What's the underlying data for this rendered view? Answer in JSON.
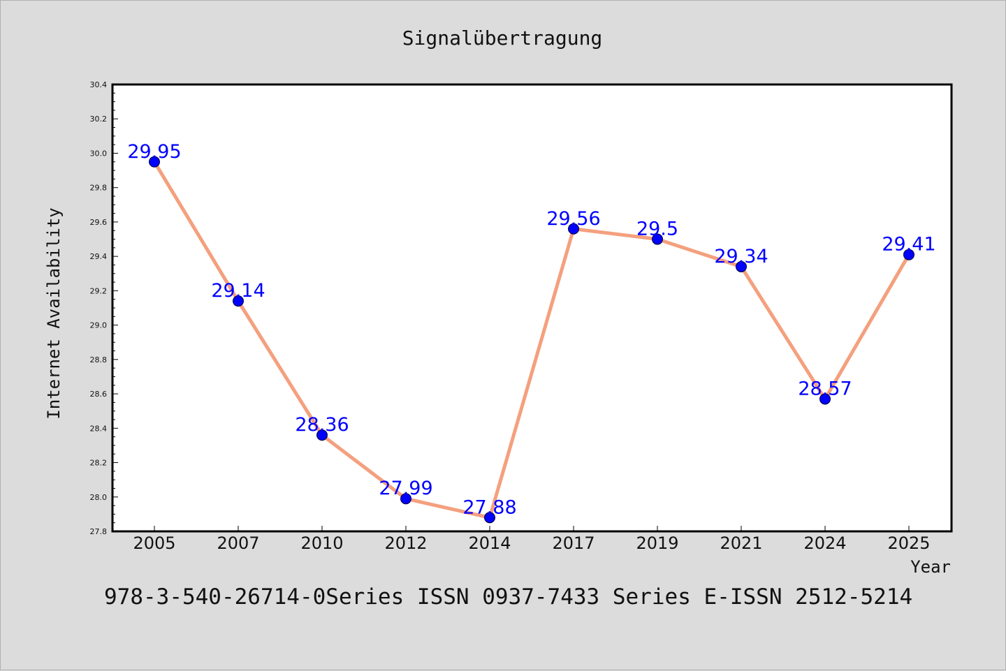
{
  "chart_data": {
    "type": "line",
    "title": "Signalübertragung",
    "xlabel": "Year",
    "ylabel": "Internet Availability",
    "categories": [
      "2005",
      "2007",
      "2010",
      "2012",
      "2014",
      "2017",
      "2019",
      "2021",
      "2024",
      "2025"
    ],
    "series": [
      {
        "values": [
          29.95,
          29.14,
          28.36,
          27.99,
          27.88,
          29.56,
          29.5,
          29.34,
          28.57,
          29.41
        ]
      }
    ],
    "data_labels": [
      "29.95",
      "29.14",
      "28.36",
      "27.99",
      "27.88",
      "29.56",
      "29.5",
      "29.34",
      "28.57",
      "29.41"
    ],
    "ylim": [
      27.8,
      30.4
    ],
    "yticks": [
      "27.8",
      "28.0",
      "28.2",
      "28.4",
      "28.6",
      "28.8",
      "29.0",
      "29.2",
      "29.4",
      "29.6",
      "29.8",
      "30.0",
      "30.2",
      "30.4"
    ],
    "grid": false,
    "legend": "none",
    "colors": {
      "line": "#f4a07e",
      "marker": "#0000ff",
      "label": "#0000ff",
      "background": "#dcdcdc",
      "plot_background": "#ffffff"
    }
  },
  "footer": "978-3-540-26714-0Series ISSN 0937-7433 Series E-ISSN 2512-5214"
}
